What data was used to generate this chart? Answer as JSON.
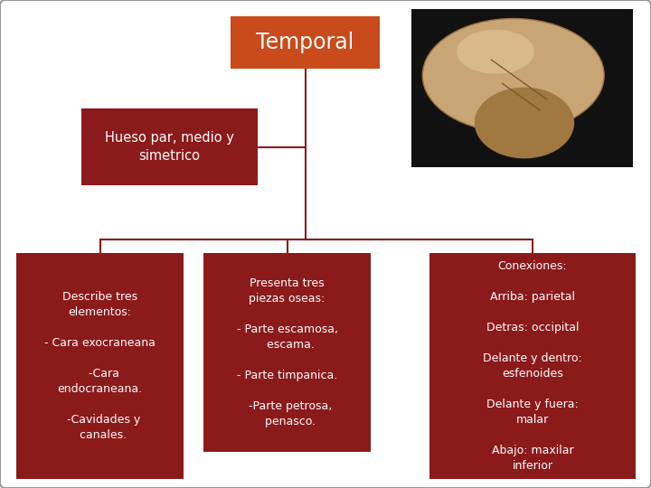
{
  "title": "Temporal",
  "subtitle": "Hueso par, medio y\nsimetrico",
  "box1_text": "Describe tres\nelementos:\n\n- Cara exocraneana\n\n  -Cara\nendocraneana.\n\n  -Cavidades y\n  canales.",
  "box2_text": "Presenta tres\npiezas oseas:\n\n- Parte escamosa,\n  escama.\n\n- Parte timpanica.\n\n  -Parte petrosa,\n  penasco.",
  "box3_text": "Conexiones:\n\nArriba: parietal\n\nDetras: occipital\n\nDelante y dentro:\nesfenoides\n\nDelante y fuera:\nmalar\n\nAbajo: maxilar\ninferior",
  "dark_red": "#8B1A1A",
  "orange_red": "#C94A1A",
  "bg_color": "#FFFFFF",
  "border_color": "#999999",
  "line_color": "#8B1A1A"
}
